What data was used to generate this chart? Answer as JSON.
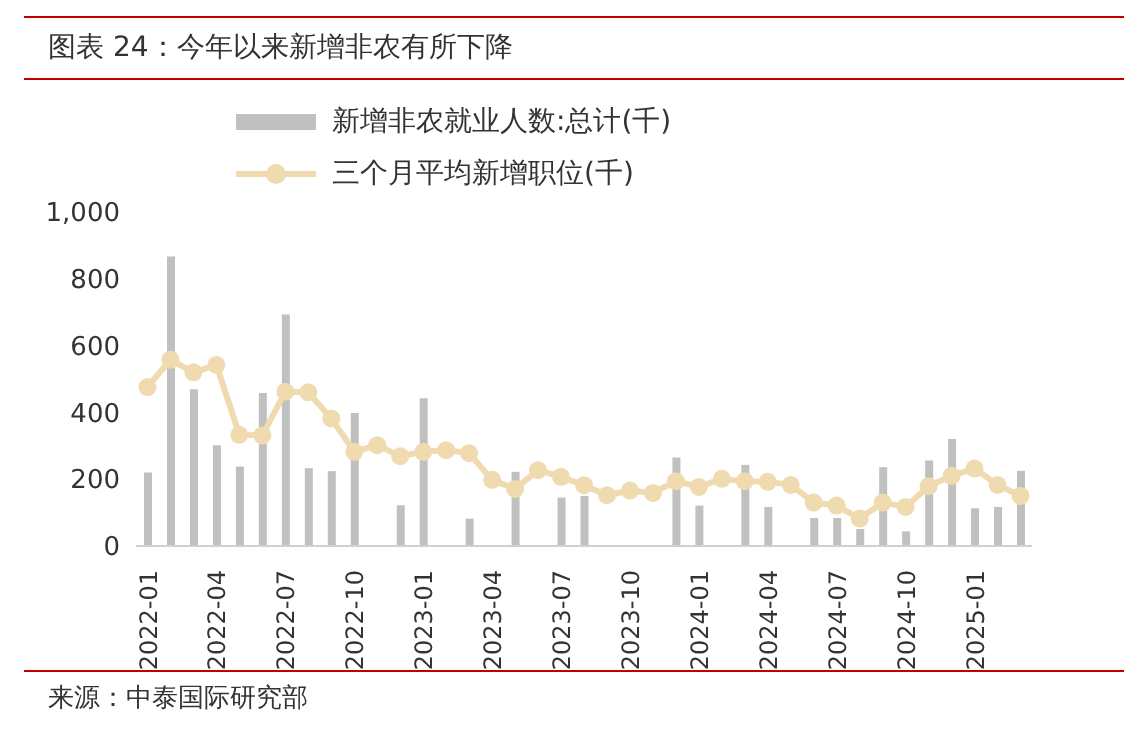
{
  "chart_data": {
    "type": "bar",
    "title": "图表 24：今年以来新增非农有所下降",
    "categories": [
      "2022-01",
      null,
      null,
      "2022-04",
      null,
      null,
      "2022-07",
      null,
      null,
      "2022-10",
      null,
      null,
      "2023-01",
      null,
      null,
      "2023-04",
      null,
      null,
      "2023-07",
      null,
      null,
      "2023-10",
      null,
      null,
      "2024-01",
      null,
      null,
      "2024-04",
      null,
      null,
      "2024-07",
      null,
      null,
      "2024-10",
      null,
      null,
      "2025-01",
      null,
      null
    ],
    "series": [
      {
        "name": "新增非农就业人数:总计(千)",
        "color": "#c0c0c0",
        "values": [
          220,
          867,
          469,
          302,
          238,
          458,
          693,
          233,
          224,
          398,
          null,
          122,
          442,
          null,
          82,
          null,
          222,
          null,
          145,
          150,
          null,
          null,
          null,
          265,
          121,
          null,
          243,
          117,
          null,
          84,
          84,
          51,
          236,
          44,
          256,
          320,
          113,
          117,
          225
        ]
      },
      {
        "name": "三个月平均新增职位(千)",
        "type": "line",
        "color": "#f0dbb0",
        "values": [
          476,
          558,
          520,
          542,
          333,
          331,
          462,
          460,
          382,
          282,
          302,
          269,
          282,
          287,
          278,
          198,
          171,
          227,
          207,
          182,
          152,
          166,
          159,
          194,
          177,
          201,
          194,
          192,
          183,
          130,
          121,
          82,
          130,
          117,
          179,
          210,
          232,
          183,
          150
        ]
      }
    ],
    "ylim": [
      0,
      1000
    ],
    "yticks": [
      0,
      200,
      400,
      600,
      800,
      {
        "value": 1000,
        "label": "1,000"
      }
    ],
    "legend": "top",
    "marker": "circle",
    "grid": false,
    "annotations": [
      "来源：中泰国际研究部"
    ]
  }
}
